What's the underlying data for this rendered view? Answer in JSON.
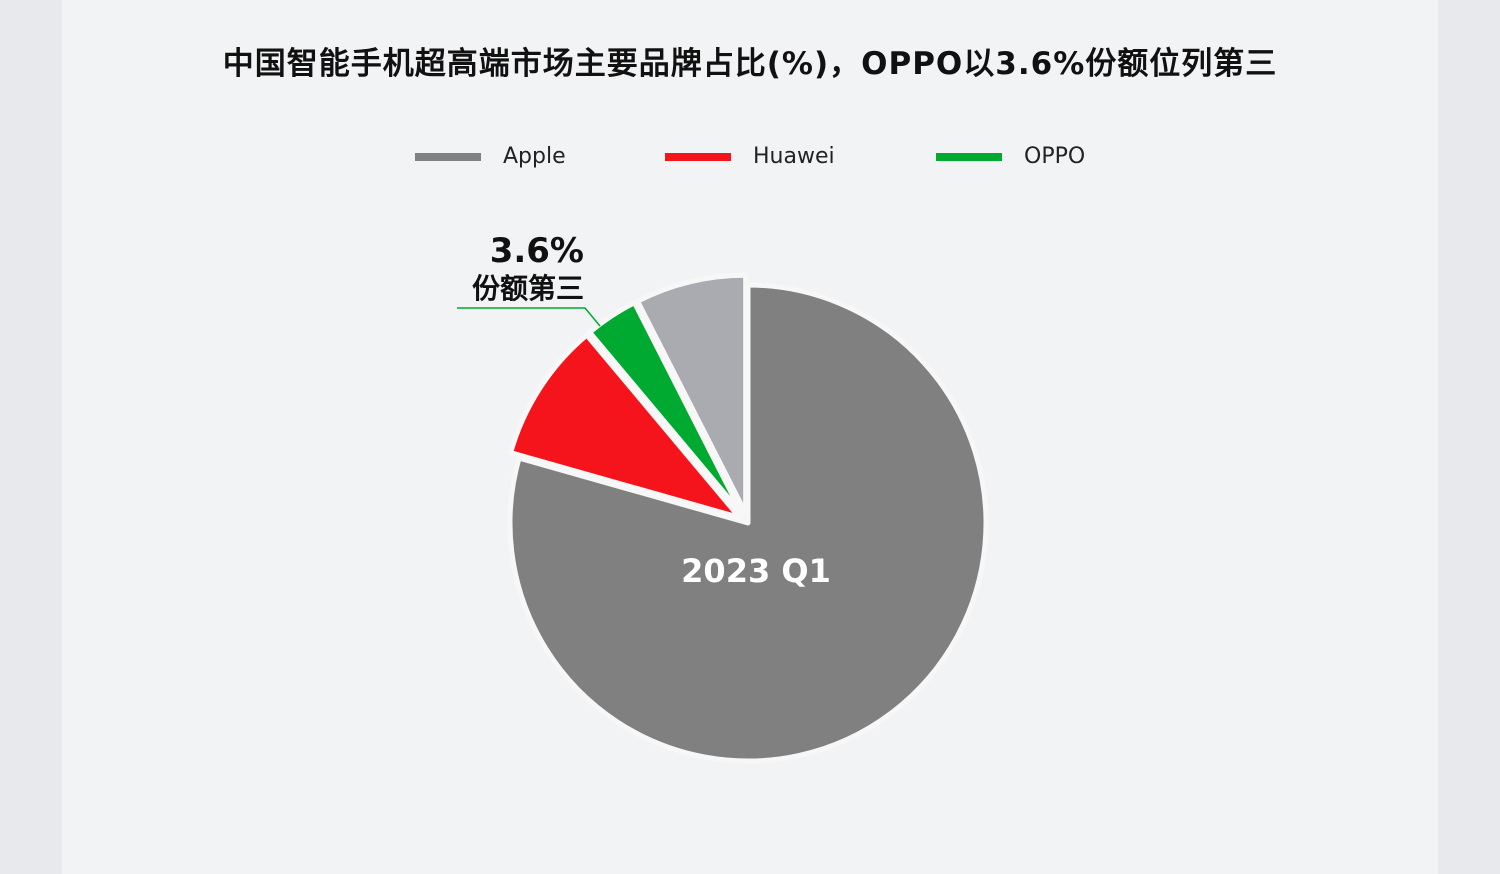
{
  "title": "中国智能手机超高端市场主要品牌占比(%)，OPPO以3.6%份额位列第三",
  "chart_data": {
    "type": "pie",
    "title": "中国智能手机超高端市场主要品牌占比(%)，OPPO以3.6%份额位列第三",
    "center_label": "2023 Q1",
    "legend_position": "top",
    "slices": [
      {
        "name": "Apple",
        "value": 79.4,
        "color": "#808080",
        "exploded": false
      },
      {
        "name": "Huawei",
        "value": 9.5,
        "color": "#f5141c",
        "exploded": true
      },
      {
        "name": "OPPO",
        "value": 3.6,
        "color": "#00a92f",
        "exploded": true
      },
      {
        "name": "",
        "value": 7.5,
        "color": "#a9abb0",
        "exploded": true
      }
    ],
    "legend": [
      "Apple",
      "Huawei",
      "OPPO"
    ],
    "annotation": {
      "value_label": "3.6%",
      "text": "份额第三",
      "target": "OPPO"
    }
  }
}
